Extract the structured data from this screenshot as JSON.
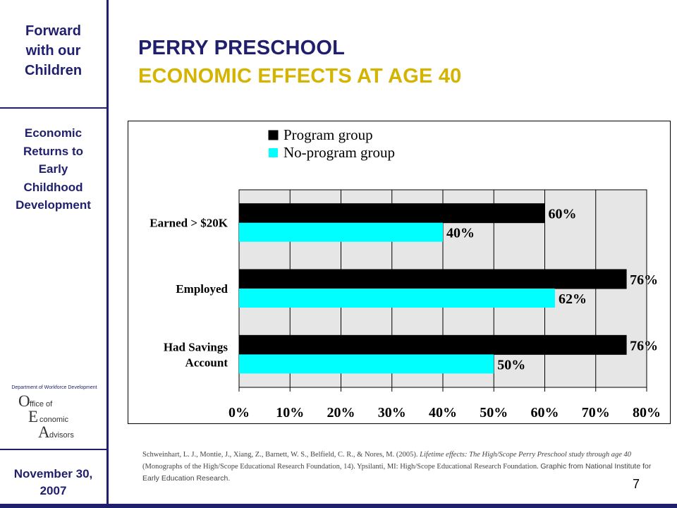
{
  "sidebar": {
    "tagline": [
      "Forward",
      "with our",
      "Children"
    ],
    "topic": [
      "Economic",
      "Returns to",
      "Early",
      "Childhood",
      "Development"
    ],
    "logo": {
      "department": "Department of Workforce Development",
      "letters": [
        "O",
        "E",
        "A"
      ],
      "words": [
        "ffice of",
        "conomic",
        "dvisors"
      ]
    },
    "date": [
      "November 30,",
      "2007"
    ]
  },
  "header": {
    "title_line1": "PERRY PRESCHOOL",
    "title_line2": "ECONOMIC  EFFECTS AT AGE 40"
  },
  "colors": {
    "navy": "#1f1f6e",
    "gold": "#d4b400",
    "program": "#000000",
    "no_program": "#00ffff",
    "plot_bg": "#e6e6e6"
  },
  "chart_data": {
    "type": "bar",
    "orientation": "horizontal",
    "categories": [
      [
        "Earned > $20K"
      ],
      [
        "Employed"
      ],
      [
        "Had Savings",
        "Account"
      ]
    ],
    "series": [
      {
        "name": "Program group",
        "values": [
          60,
          76,
          76
        ],
        "labels": [
          "60%",
          "76%",
          "76%"
        ]
      },
      {
        "name": "No-program group",
        "values": [
          40,
          62,
          50
        ],
        "labels": [
          "40%",
          "62%",
          "50%"
        ]
      }
    ],
    "xlim": [
      0,
      80
    ],
    "xticks": [
      0,
      10,
      20,
      30,
      40,
      50,
      60,
      70,
      80
    ],
    "xtick_labels": [
      "0%",
      "10%",
      "20%",
      "30%",
      "40%",
      "50%",
      "60%",
      "70%",
      "80%"
    ],
    "grid": "vertical",
    "legend": "top-left"
  },
  "citation": {
    "text1": "Schweinhart, L. J., Montie, J., Xiang, Z., Barnett, W. S., Belfield, C. R., & Nores, M. (2005). ",
    "italic": "Lifetime effects:  The High/Scope Perry Preschool study through age 40",
    "text2": " (Monographs of the High/Scope Educational Research Foundation, 14). Ypsilanti, MI: High/Scope Educational Research Foundation. ",
    "graphic_credit": "Graphic from National Institute for Early Education Research."
  },
  "page_number": "7"
}
